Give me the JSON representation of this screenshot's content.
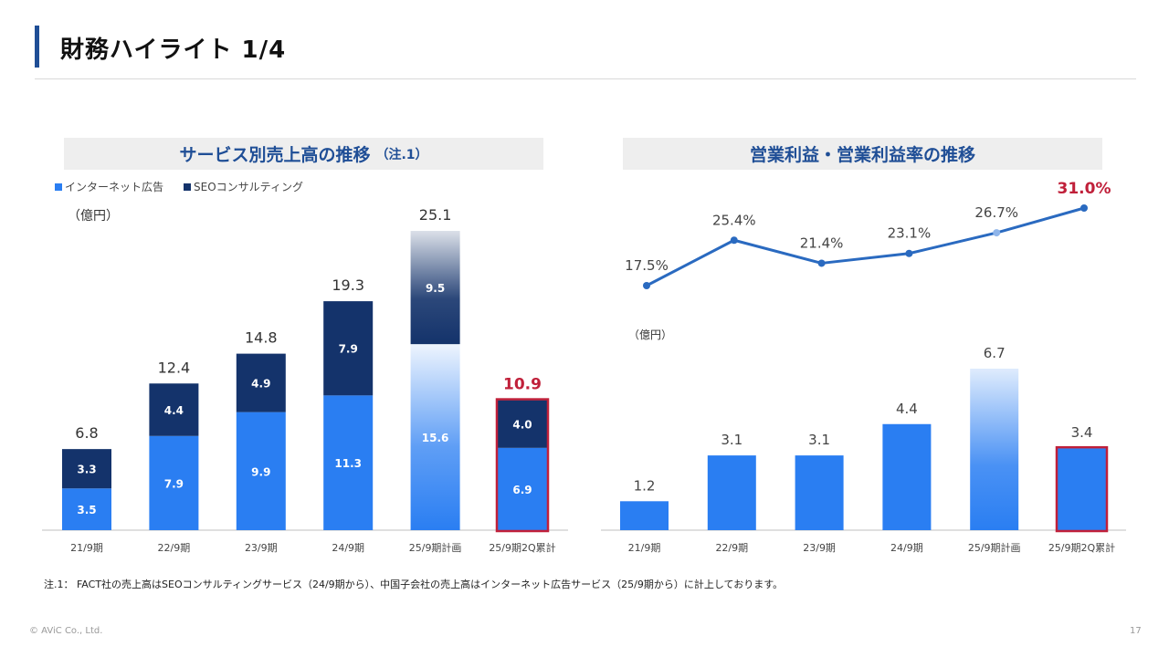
{
  "page": {
    "title": "財務ハイライト 1/4",
    "footnote": "注.1： FACT社の売上高はSEOコンサルティングサービス（24/9期から）、中国子会社の売上高はインターネット広告サービス（25/9期から）に計上しております。",
    "copyright": "© AViC Co., Ltd.",
    "page_number": "17"
  },
  "colors": {
    "internet_ads": "#2a7ef2",
    "seo_consulting": "#14336b",
    "highlight_border": "#c0203a",
    "line": "#2a6ac0",
    "header_text": "#1f4e96"
  },
  "left_panel": {
    "header": "サービス別売上高の推移",
    "header_note": "（注.1）",
    "unit": "（億円）",
    "legend": [
      "インターネット広告",
      "SEOコンサルティング"
    ]
  },
  "right_panel": {
    "header": "営業利益・営業利益率の推移",
    "unit": "（億円）"
  },
  "chart_data": [
    {
      "type": "bar",
      "stacked": true,
      "categories": [
        "21/9期",
        "22/9期",
        "23/9期",
        "24/9期",
        "25/9期計画",
        "25/9期2Q累計"
      ],
      "series": [
        {
          "name": "インターネット広告",
          "values": [
            3.5,
            7.9,
            9.9,
            11.3,
            15.6,
            6.9
          ]
        },
        {
          "name": "SEOコンサルティング",
          "values": [
            3.3,
            4.4,
            4.9,
            7.9,
            9.5,
            4.0
          ]
        }
      ],
      "totals": [
        "6.8",
        "12.4",
        "14.8",
        "19.3",
        "25.1",
        "10.9"
      ],
      "highlight_index": 5,
      "plan_index": 4,
      "ylim": [
        0,
        25.1
      ]
    },
    {
      "type": "line",
      "categories": [
        "21/9期",
        "22/9期",
        "23/9期",
        "24/9期",
        "25/9期計画",
        "25/9期2Q累計"
      ],
      "values": [
        17.5,
        25.4,
        21.4,
        23.1,
        26.7,
        31.0
      ],
      "labels": [
        "17.5%",
        "25.4%",
        "21.4%",
        "23.1%",
        "26.7%",
        "31.0%"
      ],
      "highlight_index": 5,
      "plan_index": 4,
      "ylim": [
        17.5,
        31.0
      ]
    },
    {
      "type": "bar",
      "categories": [
        "21/9期",
        "22/9期",
        "23/9期",
        "24/9期",
        "25/9期計画",
        "25/9期2Q累計"
      ],
      "values": [
        1.2,
        3.1,
        3.1,
        4.4,
        6.7,
        3.4
      ],
      "labels": [
        "1.2",
        "3.1",
        "3.1",
        "4.4",
        "6.7",
        "3.4"
      ],
      "highlight_index": 5,
      "plan_index": 4,
      "ylim": [
        0,
        6.7
      ]
    }
  ]
}
